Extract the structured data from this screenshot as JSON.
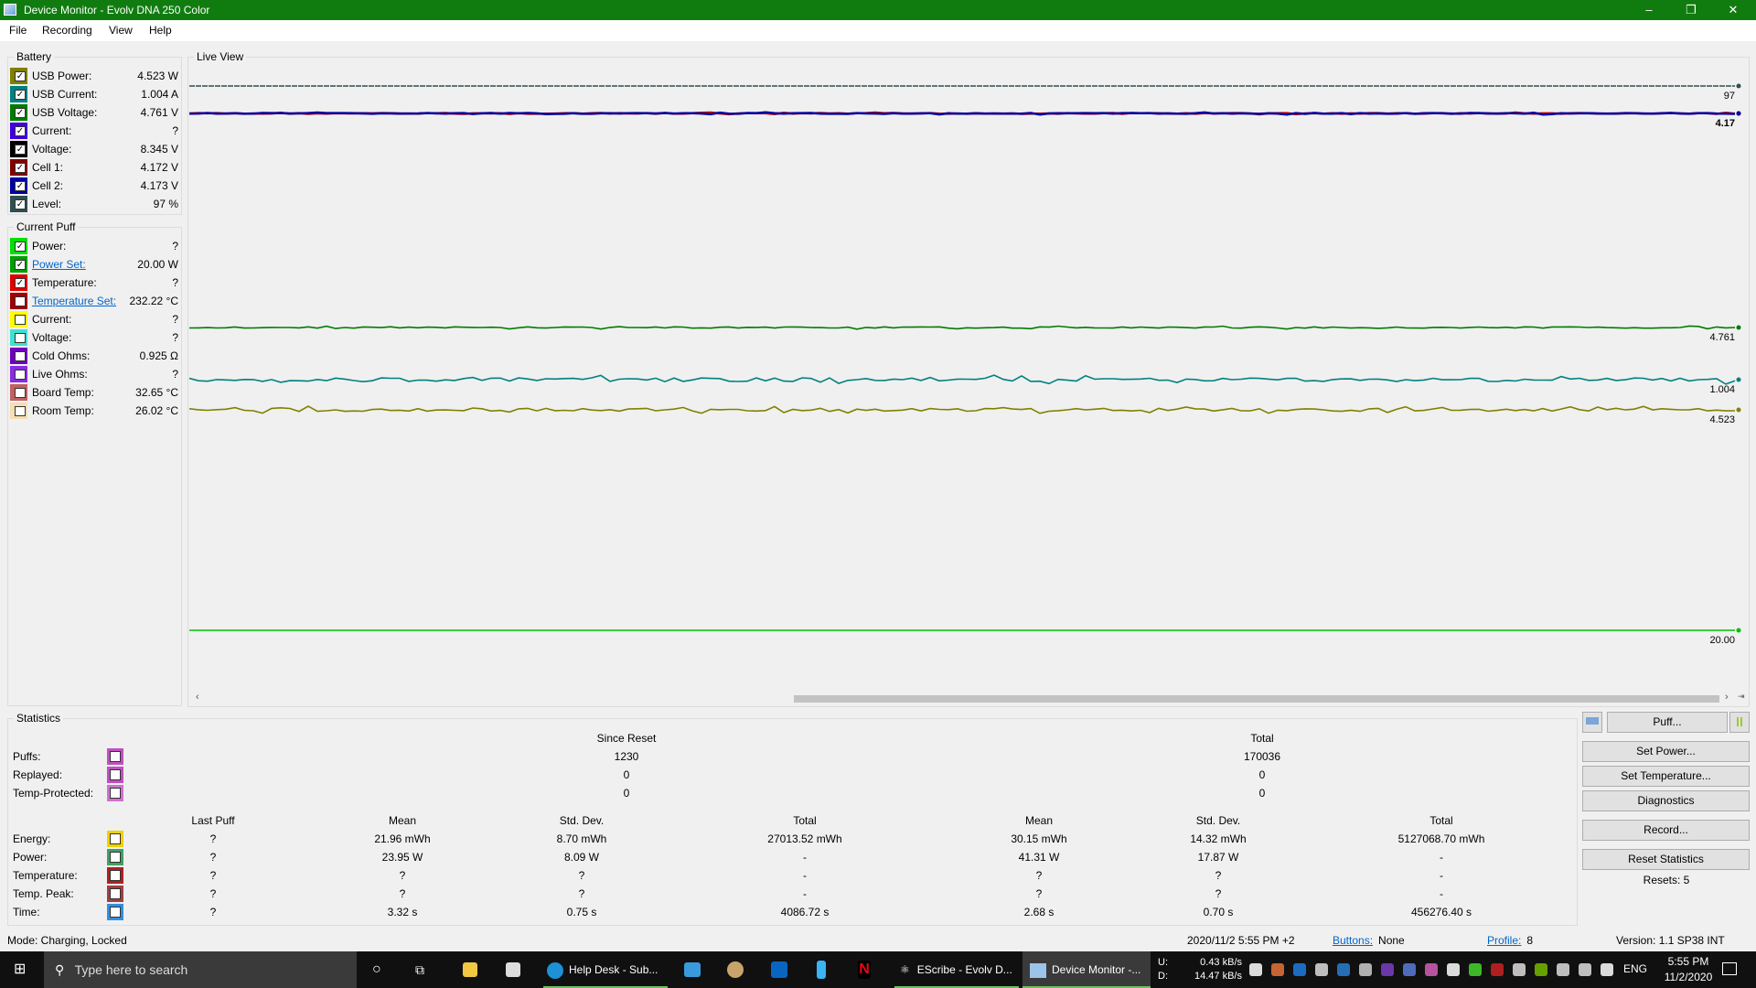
{
  "window": {
    "title": "Device Monitor - Evolv DNA 250 Color",
    "min": "–",
    "restore": "❐",
    "close": "✕"
  },
  "menu": [
    "File",
    "Recording",
    "View",
    "Help"
  ],
  "battery": {
    "title": "Battery",
    "items": [
      {
        "label": "USB Power:",
        "value": "4.523 W",
        "color": "#808000",
        "checked": true
      },
      {
        "label": "USB Current:",
        "value": "1.004 A",
        "color": "#008080",
        "checked": true
      },
      {
        "label": "USB Voltage:",
        "value": "4.761 V",
        "color": "#007c00",
        "checked": true
      },
      {
        "label": "Current:",
        "value": "?",
        "color": "#4000e0",
        "checked": true
      },
      {
        "label": "Voltage:",
        "value": "8.345 V",
        "color": "#000000",
        "checked": true
      },
      {
        "label": "Cell 1:",
        "value": "4.172 V",
        "color": "#800000",
        "checked": true
      },
      {
        "label": "Cell 2:",
        "value": "4.173 V",
        "color": "#0000a0",
        "checked": true
      },
      {
        "label": "Level:",
        "value": "97 %",
        "color": "#2f4f4f",
        "checked": true
      }
    ]
  },
  "current_puff": {
    "title": "Current Puff",
    "items": [
      {
        "label": "Power:",
        "value": "?",
        "color": "#00e000",
        "checked": true,
        "link": false
      },
      {
        "label": "Power Set:",
        "value": "20.00 W",
        "color": "#00a000",
        "checked": true,
        "link": true
      },
      {
        "label": "Temperature:",
        "value": "?",
        "color": "#e00000",
        "checked": true,
        "link": false
      },
      {
        "label": "Temperature Set:",
        "value": "232.22 °C",
        "color": "#a00000",
        "checked": false,
        "link": true
      },
      {
        "label": "Current:",
        "value": "?",
        "color": "#ffff00",
        "checked": false,
        "link": false
      },
      {
        "label": "Voltage:",
        "value": "?",
        "color": "#40e0d0",
        "checked": false,
        "link": false
      },
      {
        "label": "Cold Ohms:",
        "value": "0.925 Ω",
        "color": "#7000c0",
        "checked": false,
        "link": false
      },
      {
        "label": "Live Ohms:",
        "value": "?",
        "color": "#8a2be2",
        "checked": false,
        "link": false
      },
      {
        "label": "Board Temp:",
        "value": "32.65 °C",
        "color": "#c06060",
        "checked": false,
        "link": false
      },
      {
        "label": "Room Temp:",
        "value": "26.02 °C",
        "color": "#f5deb3",
        "checked": false,
        "link": false
      }
    ]
  },
  "live_view": {
    "title": "Live View"
  },
  "chart_data": {
    "type": "line",
    "series": [
      {
        "name": "Level",
        "last": "97",
        "color": "#2f4f4f",
        "noise": 0,
        "dashed": true
      },
      {
        "name": "Cell 1",
        "last": "4.17",
        "color": "#c00000",
        "noise": 1
      },
      {
        "name": "Cell 2",
        "last": "4.17",
        "color": "#0000a0",
        "noise": 1
      },
      {
        "name": "USB Voltage",
        "last": "4.761",
        "color": "#007c00",
        "noise": 1.5
      },
      {
        "name": "USB Current",
        "last": "1.004",
        "color": "#008080",
        "noise": 4
      },
      {
        "name": "USB Power",
        "last": "4.523",
        "color": "#808000",
        "noise": 3.5
      },
      {
        "name": "Power Set",
        "last": "20.00",
        "color": "#00c000",
        "noise": 0
      }
    ]
  },
  "statistics": {
    "title": "Statistics",
    "since_reset": "Since Reset",
    "total": "Total",
    "counts": [
      {
        "label": "Puffs:",
        "color": "#c050c0",
        "since": "1230",
        "total": "170036"
      },
      {
        "label": "Replayed:",
        "color": "#c050c0",
        "since": "0",
        "total": "0"
      },
      {
        "label": "Temp-Protected:",
        "color": "#d070d0",
        "since": "0",
        "total": "0"
      }
    ],
    "headers": [
      "Last Puff",
      "Mean",
      "Std. Dev.",
      "Total",
      "Mean",
      "Std. Dev.",
      "Total"
    ],
    "rows": [
      {
        "label": "Energy:",
        "color": "#f0d000",
        "cells": [
          "?",
          "21.96 mWh",
          "8.70 mWh",
          "27013.52 mWh",
          "30.15 mWh",
          "14.32 mWh",
          "5127068.70 mWh"
        ]
      },
      {
        "label": "Power:",
        "color": "#40a060",
        "cells": [
          "?",
          "23.95 W",
          "8.09 W",
          "-",
          "41.31 W",
          "17.87 W",
          "-"
        ]
      },
      {
        "label": "Temperature:",
        "color": "#b02020",
        "cells": [
          "?",
          "?",
          "?",
          "-",
          "?",
          "?",
          "-"
        ]
      },
      {
        "label": "Temp. Peak:",
        "color": "#a04040",
        "cells": [
          "?",
          "?",
          "?",
          "-",
          "?",
          "?",
          "-"
        ]
      },
      {
        "label": "Time:",
        "color": "#3090e0",
        "cells": [
          "?",
          "3.32 s",
          "0.75 s",
          "4086.72 s",
          "2.68 s",
          "0.70 s",
          "456276.40 s"
        ]
      }
    ]
  },
  "buttons": {
    "puff": "Puff...",
    "set_power": "Set Power...",
    "set_temperature": "Set Temperature...",
    "diagnostics": "Diagnostics",
    "record": "Record...",
    "reset_statistics": "Reset Statistics",
    "resets": "Resets: 5"
  },
  "status": {
    "mode": "Mode: Charging, Locked",
    "datetime": "2020/11/2 5:55 PM +2",
    "buttons_label": "Buttons:",
    "buttons_value": "None",
    "profile_label": "Profile:",
    "profile_value": "8",
    "version": "Version: 1.1 SP38 INT"
  },
  "taskbar": {
    "search_placeholder": "Type here to search",
    "apps": [
      "Help Desk - Sub...",
      "EScribe - Evolv D...",
      "Device Monitor -..."
    ],
    "net_up": "U:",
    "net_down": "D:",
    "up_rate": "0.43 kB/s",
    "down_rate": "14.47 kB/s",
    "lang": "ENG",
    "time": "5:55 PM",
    "date": "11/2/2020"
  }
}
